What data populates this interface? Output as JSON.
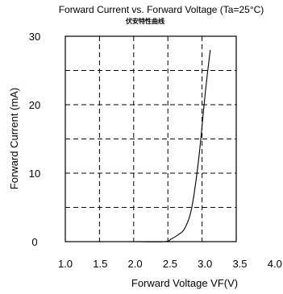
{
  "chart_data": {
    "type": "line",
    "title": "Forward Current vs. Forward Voltage (Ta=25°C)",
    "subtitle": "伏安特性曲线",
    "xlabel": "Forward Voltage  VF(V)",
    "ylabel": "Forward Current (mA)",
    "xlim": [
      1.0,
      3.5
    ],
    "ylim": [
      0,
      30
    ],
    "x_ticks": [
      1.0,
      1.5,
      2.0,
      2.5,
      3.0,
      3.5,
      4.0
    ],
    "x_tick_labels": [
      "1.0",
      "1.5",
      "2.0",
      "2.5",
      "3.0",
      "3.5",
      "4.0"
    ],
    "y_ticks": [
      0,
      10,
      20,
      30
    ],
    "y_tick_labels": [
      "0",
      "10",
      "20",
      "30"
    ],
    "y_gridlines": [
      5,
      10,
      15,
      20,
      25
    ],
    "x_gridlines": [
      1.5,
      2.0,
      2.5,
      3.0
    ],
    "grid": "dashed",
    "series": [
      {
        "x": [
          1.0,
          2.0,
          2.45,
          2.55,
          2.65,
          2.75,
          2.85,
          2.95,
          3.05,
          3.12
        ],
        "y": [
          0,
          0,
          0,
          0.4,
          1.0,
          2.0,
          5.0,
          12.0,
          22.0,
          28.0
        ],
        "color": "#000000"
      }
    ]
  }
}
